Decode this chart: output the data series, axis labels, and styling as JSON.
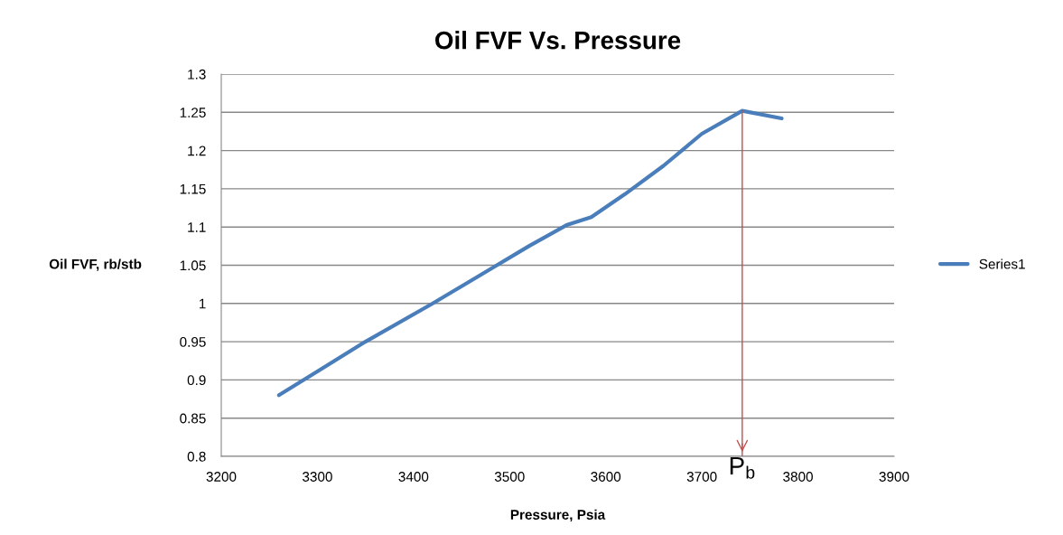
{
  "chart_data": {
    "type": "line",
    "title": "Oil FVF Vs. Pressure",
    "xlabel": "Pressure, Psia",
    "ylabel": "Oil FVF, rb/stb",
    "x": [
      3260,
      3300,
      3350,
      3420,
      3480,
      3520,
      3560,
      3585,
      3620,
      3660,
      3700,
      3742,
      3783
    ],
    "series": [
      {
        "name": "Series1",
        "color": "#4a7ebb",
        "values": [
          0.88,
          0.911,
          0.95,
          1.0,
          1.045,
          1.075,
          1.103,
          1.113,
          1.143,
          1.18,
          1.222,
          1.252,
          1.242
        ]
      }
    ],
    "xlim": [
      3200,
      3900
    ],
    "xticks": [
      3200,
      3300,
      3400,
      3500,
      3600,
      3700,
      3800,
      3900
    ],
    "ylim": [
      0.8,
      1.3
    ],
    "yticks": [
      0.8,
      0.85,
      0.9,
      0.95,
      1,
      1.05,
      1.1,
      1.15,
      1.2,
      1.25,
      1.3
    ],
    "ref_lines": [
      {
        "axis": "x",
        "value": 3742,
        "label": "P$_{b}$",
        "color": "#c0504d"
      }
    ],
    "grid": "y",
    "legend": "right",
    "marker": "none",
    "line_style": "solid"
  }
}
